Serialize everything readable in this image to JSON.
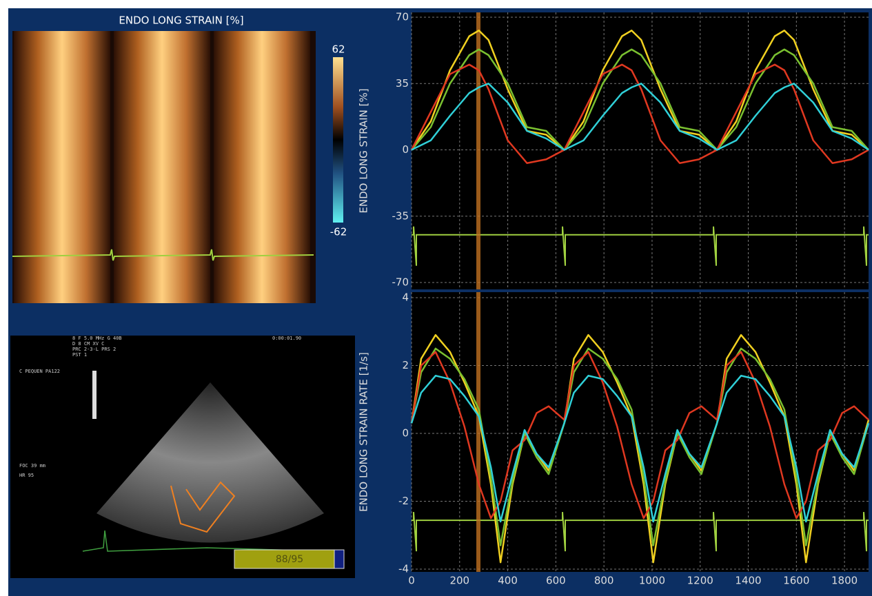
{
  "heatmap": {
    "title": "ENDO LONG STRAIN [%]",
    "colorbar_max": "62",
    "colorbar_min": "-62"
  },
  "ultrasound": {
    "header_lines": [
      "8 F  5.0 MHz G  40B",
      "D    8 CM  XV   C",
      "PRC  2-3-L  PRS  2",
      "PST  1"
    ],
    "time": "0:00:01.90",
    "patient": "C PEQUEN PA122",
    "focus": "FOC  39 mm",
    "heart_rate": "HR  95",
    "frame": "88/95"
  },
  "chart_data": [
    {
      "type": "line",
      "ylabel": "ENDO LONG STRAIN [%]",
      "x": [
        0,
        80,
        160,
        240,
        280,
        320,
        400,
        480,
        560,
        635,
        715,
        795,
        875,
        915,
        955,
        1035,
        1115,
        1195,
        1270,
        1350,
        1430,
        1510,
        1550,
        1590,
        1670,
        1750,
        1830,
        1900
      ],
      "xlim": [
        0,
        1900
      ],
      "xticks": [
        0,
        200,
        400,
        600,
        800,
        1000,
        1200,
        1400,
        1600,
        1800
      ],
      "ylim": [
        -70,
        70
      ],
      "yticks": [
        -70,
        -35,
        0,
        35,
        70
      ],
      "grid": true,
      "series": [
        {
          "color": "#f0d020",
          "values": [
            0,
            15,
            42,
            60,
            63,
            58,
            32,
            10,
            8,
            0,
            15,
            42,
            60,
            63,
            58,
            32,
            10,
            8,
            0,
            15,
            42,
            60,
            63,
            58,
            32,
            10,
            8,
            0
          ]
        },
        {
          "color": "#7ac030",
          "values": [
            0,
            12,
            35,
            50,
            53,
            50,
            35,
            12,
            10,
            0,
            12,
            35,
            50,
            53,
            50,
            35,
            12,
            10,
            0,
            12,
            35,
            50,
            53,
            50,
            35,
            12,
            10,
            0
          ]
        },
        {
          "color": "#e03820",
          "values": [
            0,
            20,
            40,
            45,
            42,
            32,
            5,
            -7,
            -5,
            0,
            20,
            40,
            45,
            42,
            32,
            5,
            -7,
            -5,
            0,
            20,
            40,
            45,
            42,
            32,
            5,
            -7,
            -5,
            0
          ]
        },
        {
          "color": "#30d0d8",
          "values": [
            0,
            5,
            18,
            30,
            33,
            35,
            25,
            10,
            6,
            0,
            5,
            18,
            30,
            33,
            35,
            25,
            10,
            6,
            0,
            5,
            18,
            30,
            33,
            35,
            25,
            10,
            6,
            0
          ]
        }
      ]
    },
    {
      "type": "line",
      "ylabel": "ENDO LONG STRAIN RATE [1/s]",
      "x": [
        0,
        40,
        100,
        160,
        220,
        280,
        330,
        370,
        420,
        470,
        520,
        570,
        635,
        675,
        735,
        795,
        855,
        915,
        965,
        1005,
        1055,
        1105,
        1155,
        1205,
        1270,
        1310,
        1370,
        1430,
        1490,
        1550,
        1600,
        1640,
        1690,
        1740,
        1790,
        1840,
        1900
      ],
      "xlim": [
        0,
        1900
      ],
      "xticks": [
        0,
        200,
        400,
        600,
        800,
        1000,
        1200,
        1400,
        1600,
        1800
      ],
      "ylim": [
        -4,
        4
      ],
      "yticks": [
        -4,
        -2,
        0,
        2,
        4
      ],
      "grid": true,
      "series": [
        {
          "color": "#f0d020",
          "values": [
            0.3,
            2.2,
            2.9,
            2.4,
            1.5,
            0.5,
            -1.5,
            -3.8,
            -1.5,
            0,
            -0.6,
            -1.1,
            0.3,
            2.2,
            2.9,
            2.4,
            1.5,
            0.5,
            -1.5,
            -3.8,
            -1.5,
            0,
            -0.6,
            -1.1,
            0.3,
            2.2,
            2.9,
            2.4,
            1.5,
            0.5,
            -1.5,
            -3.8,
            -1.5,
            0,
            -0.6,
            -1.1,
            0.4
          ]
        },
        {
          "color": "#7ac030",
          "values": [
            0.3,
            1.8,
            2.5,
            2.2,
            1.6,
            0.7,
            -1.3,
            -3.3,
            -1.4,
            0,
            -0.7,
            -1.2,
            0.3,
            1.8,
            2.5,
            2.2,
            1.6,
            0.7,
            -1.3,
            -3.3,
            -1.4,
            0,
            -0.7,
            -1.2,
            0.3,
            1.8,
            2.5,
            2.2,
            1.6,
            0.7,
            -1.3,
            -3.3,
            -1.4,
            0,
            -0.7,
            -1.2,
            0.3
          ]
        },
        {
          "color": "#e03820",
          "values": [
            0.3,
            2.0,
            2.4,
            1.5,
            0.2,
            -1.5,
            -2.5,
            -2.0,
            -0.5,
            -0.2,
            0.6,
            0.8,
            0.4,
            2.0,
            2.4,
            1.5,
            0.2,
            -1.5,
            -2.5,
            -2.0,
            -0.5,
            -0.2,
            0.6,
            0.8,
            0.4,
            2.0,
            2.4,
            1.5,
            0.2,
            -1.5,
            -2.5,
            -2.0,
            -0.5,
            -0.2,
            0.6,
            0.8,
            0.4
          ]
        },
        {
          "color": "#30d0d8",
          "values": [
            0.3,
            1.2,
            1.7,
            1.6,
            1.1,
            0.5,
            -1.0,
            -2.6,
            -1.2,
            0.1,
            -0.6,
            -1.0,
            0.3,
            1.2,
            1.7,
            1.6,
            1.1,
            0.5,
            -1.0,
            -2.6,
            -1.2,
            0.1,
            -0.6,
            -1.0,
            0.3,
            1.2,
            1.7,
            1.6,
            1.1,
            0.5,
            -1.0,
            -2.6,
            -1.2,
            0.1,
            -0.6,
            -1.0,
            0.3
          ]
        }
      ]
    }
  ]
}
